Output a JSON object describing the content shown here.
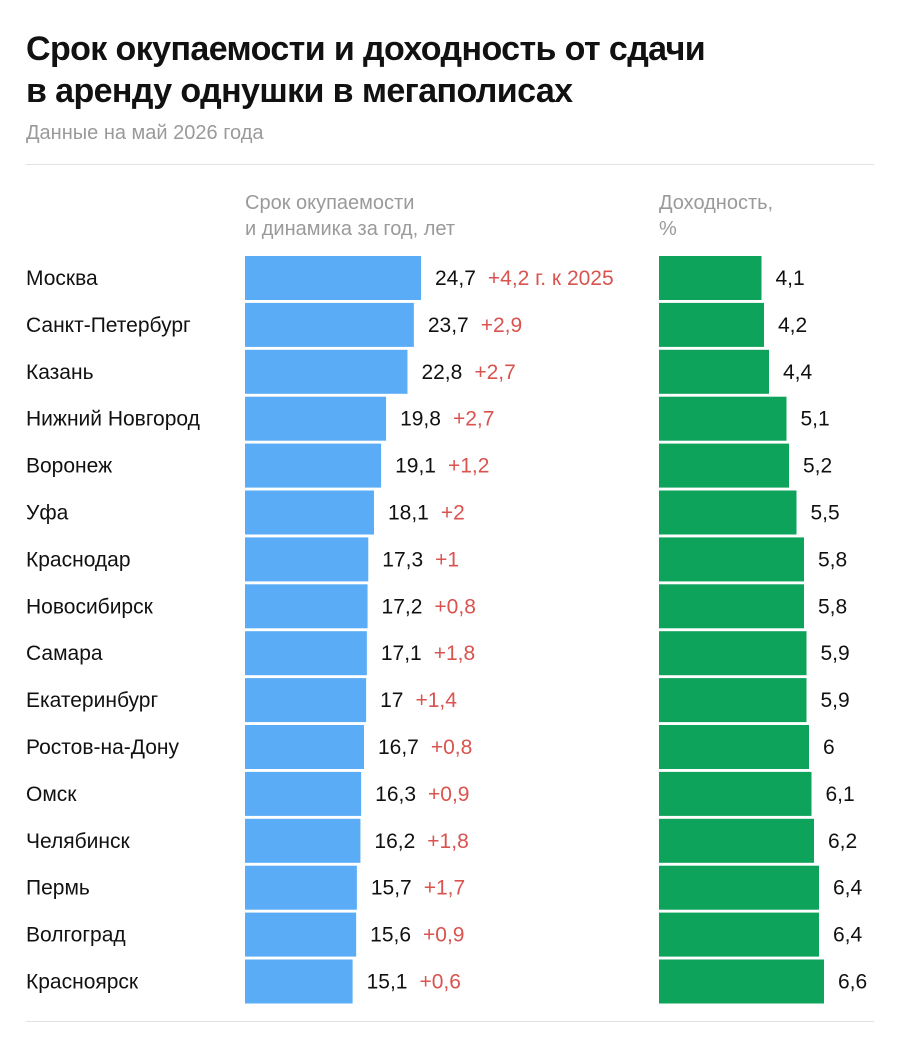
{
  "title_lines": [
    "Срок окупаемости и доходность от сдачи",
    "в аренду однушки в мегаполисах"
  ],
  "subtitle": "Данные на май 2026 года",
  "colors": {
    "payback_bar": "#5aacf7",
    "yield_bar": "#0ea35a",
    "delta_text": "#d9534f"
  },
  "chart_data": [
    {
      "type": "bar",
      "orientation": "horizontal",
      "header_lines": [
        "Срок окупаемости",
        "и динамика за год, лет"
      ],
      "categories": [
        "Москва",
        "Санкт-Петербург",
        "Казань",
        "Нижний Новгород",
        "Воронеж",
        "Уфа",
        "Краснодар",
        "Новосибирск",
        "Самара",
        "Екатеринбург",
        "Ростов-на-Дону",
        "Омск",
        "Челябинск",
        "Пермь",
        "Волгоград",
        "Красноярск"
      ],
      "values": [
        24.7,
        23.7,
        22.8,
        19.8,
        19.1,
        18.1,
        17.3,
        17.2,
        17.1,
        17,
        16.7,
        16.3,
        16.2,
        15.7,
        15.6,
        15.1
      ],
      "value_labels": [
        "24,7",
        "23,7",
        "22,8",
        "19,8",
        "19,1",
        "18,1",
        "17,3",
        "17,2",
        "17,1",
        "17",
        "16,7",
        "16,3",
        "16,2",
        "15,7",
        "15,6",
        "15,1"
      ],
      "changes": [
        4.2,
        2.9,
        2.7,
        2.7,
        1.2,
        2,
        1,
        0.8,
        1.8,
        1.4,
        0.8,
        0.9,
        1.8,
        1.7,
        0.9,
        0.6
      ],
      "change_labels": [
        "+4,2 г. к 2025",
        "+2,9",
        "+2,7",
        "+2,7",
        "+1,2",
        "+2",
        "+1",
        "+0,8",
        "+1,8",
        "+1,4",
        "+0,8",
        "+0,9",
        "+1,8",
        "+1,7",
        "+0,9",
        "+0,6"
      ],
      "xlim": [
        0,
        24.7
      ]
    },
    {
      "type": "bar",
      "orientation": "horizontal",
      "header_lines": [
        "Доходность,",
        "%"
      ],
      "categories": [
        "Москва",
        "Санкт-Петербург",
        "Казань",
        "Нижний Новгород",
        "Воронеж",
        "Уфа",
        "Краснодар",
        "Новосибирск",
        "Самара",
        "Екатеринбург",
        "Ростов-на-Дону",
        "Омск",
        "Челябинск",
        "Пермь",
        "Волгоград",
        "Красноярск"
      ],
      "values": [
        4.1,
        4.2,
        4.4,
        5.1,
        5.2,
        5.5,
        5.8,
        5.8,
        5.9,
        5.9,
        6,
        6.1,
        6.2,
        6.4,
        6.4,
        6.6
      ],
      "value_labels": [
        "4,1",
        "4,2",
        "4,4",
        "5,1",
        "5,2",
        "5,5",
        "5,8",
        "5,8",
        "5,9",
        "5,9",
        "6",
        "6,1",
        "6,2",
        "6,4",
        "6,4",
        "6,6"
      ],
      "xlim": [
        0,
        6.6
      ]
    }
  ]
}
